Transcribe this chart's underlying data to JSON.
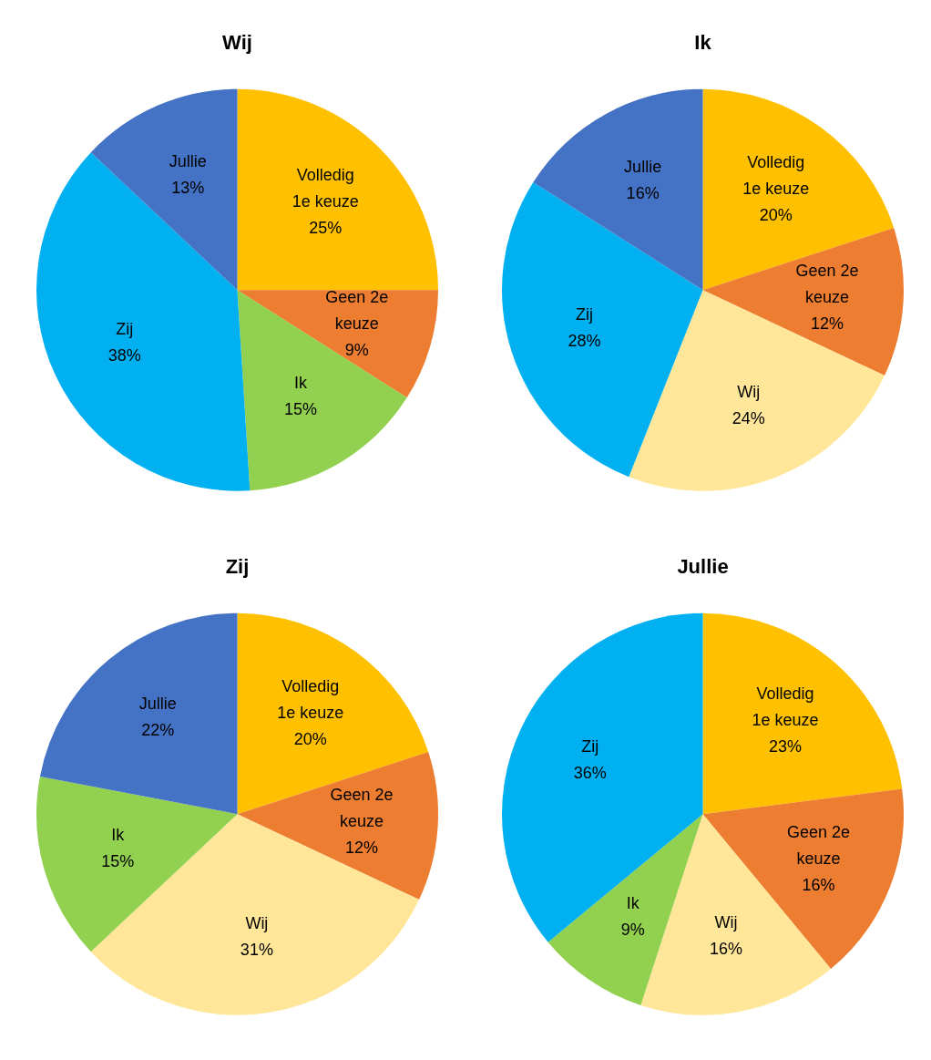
{
  "chart_data": [
    {
      "type": "pie",
      "title": "Wij",
      "categories": [
        "Volledig 1e keuze",
        "Geen 2e keuze",
        "Ik",
        "Zij",
        "Jullie"
      ],
      "values": [
        25,
        9,
        15,
        38,
        13
      ],
      "value_labels": [
        "25%",
        "9%",
        "15%",
        "38%",
        "13%"
      ],
      "colors": [
        "#ffc000",
        "#ed7d31",
        "#92d050",
        "#00b0f0",
        "#4472c4"
      ],
      "legend": false
    },
    {
      "type": "pie",
      "title": "Ik",
      "categories": [
        "Volledig 1e keuze",
        "Geen 2e keuze",
        "Wij",
        "Zij",
        "Jullie"
      ],
      "values": [
        20,
        12,
        24,
        28,
        16
      ],
      "value_labels": [
        "20%",
        "12%",
        "24%",
        "28%",
        "16%"
      ],
      "colors": [
        "#ffc000",
        "#ed7d31",
        "#ffe699",
        "#00b0f0",
        "#4472c4"
      ],
      "legend": false
    },
    {
      "type": "pie",
      "title": "Zij",
      "categories": [
        "Volledig 1e keuze",
        "Geen 2e keuze",
        "Wij",
        "Ik",
        "Jullie"
      ],
      "values": [
        20,
        12,
        31,
        15,
        22
      ],
      "value_labels": [
        "20%",
        "12%",
        "31%",
        "15%",
        "22%"
      ],
      "colors": [
        "#ffc000",
        "#ed7d31",
        "#ffe699",
        "#92d050",
        "#4472c4"
      ],
      "legend": false
    },
    {
      "type": "pie",
      "title": "Jullie",
      "categories": [
        "Volledig 1e keuze",
        "Geen 2e keuze",
        "Wij",
        "Ik",
        "Zij"
      ],
      "values": [
        23,
        16,
        16,
        9,
        36
      ],
      "value_labels": [
        "23%",
        "16%",
        "16%",
        "9%",
        "36%"
      ],
      "colors": [
        "#ffc000",
        "#ed7d31",
        "#ffe699",
        "#92d050",
        "#00b0f0"
      ],
      "legend": false
    }
  ]
}
